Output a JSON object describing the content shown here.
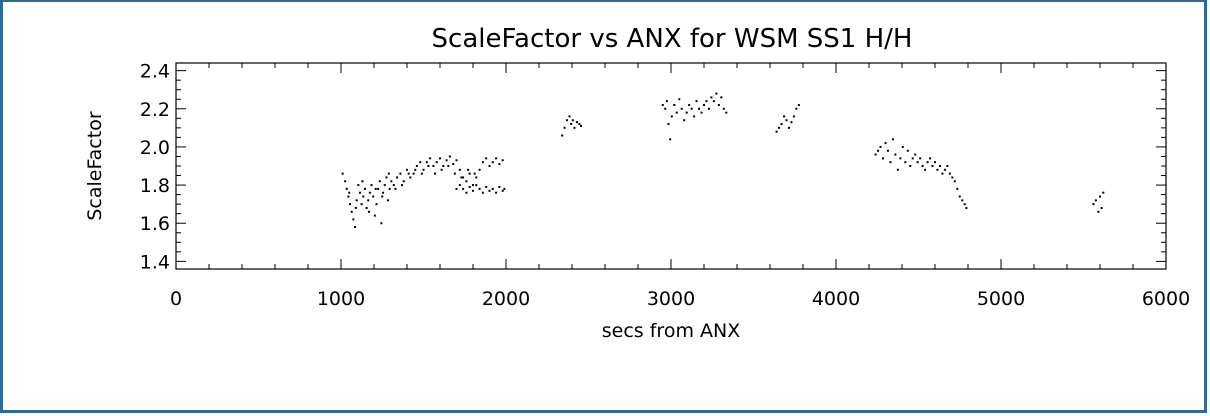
{
  "chart_data": {
    "type": "scatter",
    "title": "ScaleFactor vs ANX for WSM SS1 H/H",
    "xlabel": "secs from ANX",
    "ylabel": "ScaleFactor",
    "xlim": [
      0,
      6000
    ],
    "ylim": [
      1.36,
      2.44
    ],
    "x_ticks": [
      0,
      1000,
      2000,
      3000,
      4000,
      5000,
      6000
    ],
    "x_tick_labels": [
      "0",
      "1000",
      "2000",
      "3000",
      "4000",
      "5000",
      "6000"
    ],
    "y_ticks": [
      1.4,
      1.6,
      1.8,
      2.0,
      2.2,
      2.4
    ],
    "y_tick_labels": [
      "1.4",
      "1.6",
      "1.8",
      "2.0",
      "2.2",
      "2.4"
    ],
    "grid": false,
    "marker_color": "#000000",
    "points": [
      [
        1010,
        1.86
      ],
      [
        1025,
        1.82
      ],
      [
        1035,
        1.78
      ],
      [
        1045,
        1.74
      ],
      [
        1055,
        1.7
      ],
      [
        1065,
        1.66
      ],
      [
        1075,
        1.62
      ],
      [
        1085,
        1.58
      ],
      [
        1095,
        1.72
      ],
      [
        1105,
        1.8
      ],
      [
        1115,
        1.76
      ],
      [
        1125,
        1.7
      ],
      [
        1135,
        1.74
      ],
      [
        1145,
        1.78
      ],
      [
        1155,
        1.68
      ],
      [
        1165,
        1.72
      ],
      [
        1175,
        1.76
      ],
      [
        1185,
        1.8
      ],
      [
        1195,
        1.74
      ],
      [
        1205,
        1.64
      ],
      [
        1215,
        1.7
      ],
      [
        1225,
        1.78
      ],
      [
        1235,
        1.82
      ],
      [
        1245,
        1.6
      ],
      [
        1255,
        1.76
      ],
      [
        1265,
        1.8
      ],
      [
        1275,
        1.84
      ],
      [
        1285,
        1.72
      ],
      [
        1295,
        1.78
      ],
      [
        1305,
        1.82
      ],
      [
        1320,
        1.8
      ],
      [
        1340,
        1.84
      ],
      [
        1360,
        1.86
      ],
      [
        1380,
        1.82
      ],
      [
        1400,
        1.88
      ],
      [
        1420,
        1.84
      ],
      [
        1440,
        1.86
      ],
      [
        1460,
        1.9
      ],
      [
        1480,
        1.92
      ],
      [
        1500,
        1.88
      ],
      [
        1520,
        1.92
      ],
      [
        1540,
        1.94
      ],
      [
        1560,
        1.9
      ],
      [
        1580,
        1.92
      ],
      [
        1600,
        1.94
      ],
      [
        1620,
        1.9
      ],
      [
        1640,
        1.93
      ],
      [
        1660,
        1.95
      ],
      [
        1680,
        1.91
      ],
      [
        1700,
        1.93
      ],
      [
        1720,
        1.88
      ],
      [
        1740,
        1.84
      ],
      [
        1760,
        1.82
      ],
      [
        1780,
        1.86
      ],
      [
        1800,
        1.8
      ],
      [
        1820,
        1.84
      ],
      [
        1840,
        1.88
      ],
      [
        1860,
        1.92
      ],
      [
        1880,
        1.94
      ],
      [
        1900,
        1.9
      ],
      [
        1920,
        1.92
      ],
      [
        1940,
        1.94
      ],
      [
        1960,
        1.91
      ],
      [
        1980,
        1.93
      ],
      [
        1700,
        1.78
      ],
      [
        1720,
        1.8
      ],
      [
        1740,
        1.78
      ],
      [
        1760,
        1.76
      ],
      [
        1780,
        1.79
      ],
      [
        1800,
        1.77
      ],
      [
        1820,
        1.8
      ],
      [
        1840,
        1.78
      ],
      [
        1860,
        1.76
      ],
      [
        1880,
        1.79
      ],
      [
        1900,
        1.77
      ],
      [
        1920,
        1.78
      ],
      [
        1940,
        1.76
      ],
      [
        1960,
        1.79
      ],
      [
        1980,
        1.77
      ],
      [
        1990,
        1.78
      ],
      [
        1050,
        1.76
      ],
      [
        1090,
        1.68
      ],
      [
        1130,
        1.82
      ],
      [
        1170,
        1.66
      ],
      [
        1210,
        1.78
      ],
      [
        1250,
        1.74
      ],
      [
        1290,
        1.86
      ],
      [
        1330,
        1.78
      ],
      [
        1370,
        1.8
      ],
      [
        1410,
        1.86
      ],
      [
        1450,
        1.88
      ],
      [
        1490,
        1.86
      ],
      [
        1530,
        1.9
      ],
      [
        1570,
        1.86
      ],
      [
        1610,
        1.88
      ],
      [
        1650,
        1.9
      ],
      [
        1690,
        1.86
      ],
      [
        1730,
        1.84
      ],
      [
        1770,
        1.88
      ],
      [
        1810,
        1.86
      ],
      [
        2340,
        2.06
      ],
      [
        2355,
        2.1
      ],
      [
        2370,
        2.14
      ],
      [
        2385,
        2.16
      ],
      [
        2395,
        2.12
      ],
      [
        2405,
        2.14
      ],
      [
        2415,
        2.1
      ],
      [
        2430,
        2.13
      ],
      [
        2445,
        2.12
      ],
      [
        2455,
        2.11
      ],
      [
        2950,
        2.22
      ],
      [
        2965,
        2.2
      ],
      [
        2975,
        2.24
      ],
      [
        2985,
        2.12
      ],
      [
        2995,
        2.04
      ],
      [
        3005,
        2.16
      ],
      [
        3020,
        2.22
      ],
      [
        3035,
        2.18
      ],
      [
        3050,
        2.25
      ],
      [
        3065,
        2.2
      ],
      [
        3080,
        2.14
      ],
      [
        3095,
        2.18
      ],
      [
        3110,
        2.22
      ],
      [
        3125,
        2.2
      ],
      [
        3140,
        2.16
      ],
      [
        3155,
        2.24
      ],
      [
        3170,
        2.2
      ],
      [
        3185,
        2.18
      ],
      [
        3200,
        2.22
      ],
      [
        3215,
        2.24
      ],
      [
        3230,
        2.2
      ],
      [
        3245,
        2.26
      ],
      [
        3260,
        2.24
      ],
      [
        3275,
        2.28
      ],
      [
        3290,
        2.22
      ],
      [
        3305,
        2.26
      ],
      [
        3320,
        2.2
      ],
      [
        3335,
        2.18
      ],
      [
        3640,
        2.08
      ],
      [
        3655,
        2.1
      ],
      [
        3670,
        2.12
      ],
      [
        3685,
        2.16
      ],
      [
        3700,
        2.14
      ],
      [
        3715,
        2.1
      ],
      [
        3730,
        2.13
      ],
      [
        3745,
        2.16
      ],
      [
        3760,
        2.2
      ],
      [
        3775,
        2.22
      ],
      [
        4240,
        1.96
      ],
      [
        4255,
        1.98
      ],
      [
        4270,
        2.0
      ],
      [
        4285,
        1.94
      ],
      [
        4300,
        2.02
      ],
      [
        4315,
        1.98
      ],
      [
        4330,
        1.92
      ],
      [
        4345,
        2.04
      ],
      [
        4360,
        1.96
      ],
      [
        4375,
        1.88
      ],
      [
        4390,
        1.94
      ],
      [
        4405,
        2.0
      ],
      [
        4420,
        1.92
      ],
      [
        4435,
        1.98
      ],
      [
        4450,
        1.9
      ],
      [
        4465,
        1.94
      ],
      [
        4480,
        1.96
      ],
      [
        4495,
        1.92
      ],
      [
        4510,
        1.94
      ],
      [
        4525,
        1.9
      ],
      [
        4540,
        1.88
      ],
      [
        4555,
        1.92
      ],
      [
        4570,
        1.94
      ],
      [
        4585,
        1.9
      ],
      [
        4600,
        1.92
      ],
      [
        4615,
        1.88
      ],
      [
        4630,
        1.9
      ],
      [
        4645,
        1.86
      ],
      [
        4660,
        1.88
      ],
      [
        4675,
        1.9
      ],
      [
        4690,
        1.86
      ],
      [
        4705,
        1.84
      ],
      [
        4720,
        1.82
      ],
      [
        4735,
        1.78
      ],
      [
        4750,
        1.74
      ],
      [
        4765,
        1.72
      ],
      [
        4780,
        1.7
      ],
      [
        4790,
        1.68
      ],
      [
        5560,
        1.7
      ],
      [
        5575,
        1.72
      ],
      [
        5590,
        1.66
      ],
      [
        5600,
        1.74
      ],
      [
        5610,
        1.68
      ],
      [
        5620,
        1.76
      ]
    ]
  }
}
